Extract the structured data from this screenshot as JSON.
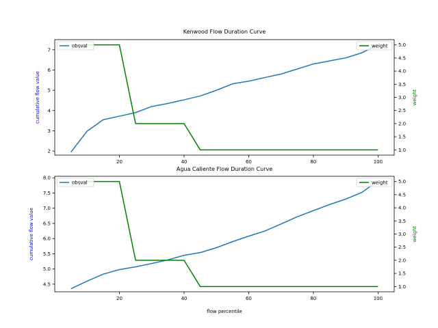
{
  "chart_data": [
    {
      "type": "line",
      "title": "Kenwood Flow Duration Curve",
      "xlabel": "",
      "ylabel": "cumulative flow value",
      "y2label": "weight",
      "xlim": [
        0,
        105
      ],
      "ylim": [
        1.8,
        7.5
      ],
      "y2lim": [
        0.8,
        5.2
      ],
      "xticks": [
        20,
        40,
        60,
        80,
        100
      ],
      "yticks": [
        2,
        3,
        4,
        5,
        6,
        7
      ],
      "y2ticks": [
        1.0,
        1.5,
        2.0,
        2.5,
        3.0,
        3.5,
        4.0,
        4.5,
        5.0
      ],
      "grid": false,
      "series": [
        {
          "name": "obsval",
          "axis": "left",
          "color": "#1f77b4",
          "x": [
            5,
            10,
            15,
            20,
            25,
            30,
            35,
            40,
            45,
            50,
            55,
            60,
            65,
            70,
            75,
            80,
            85,
            90,
            95,
            100
          ],
          "values": [
            1.95,
            2.98,
            3.55,
            3.72,
            3.9,
            4.2,
            4.35,
            4.53,
            4.72,
            5.0,
            5.32,
            5.45,
            5.63,
            5.8,
            6.05,
            6.3,
            6.45,
            6.6,
            6.85,
            7.25
          ],
          "legend_position": "top-left"
        },
        {
          "name": "weight",
          "axis": "right",
          "color": "#008000",
          "x": [
            5,
            10,
            15,
            20,
            25,
            30,
            35,
            40,
            45,
            50,
            55,
            60,
            65,
            70,
            75,
            80,
            85,
            90,
            95,
            100
          ],
          "values": [
            5,
            5,
            5,
            5,
            2,
            2,
            2,
            2,
            1,
            1,
            1,
            1,
            1,
            1,
            1,
            1,
            1,
            1,
            1,
            1
          ],
          "legend_position": "top-right"
        }
      ]
    },
    {
      "type": "line",
      "title": "Agua Caliente Flow Duration Curve",
      "xlabel": "flow percentile",
      "ylabel": "cumulative flow value",
      "y2label": "weight",
      "xlim": [
        0,
        105
      ],
      "ylim": [
        4.25,
        8.05
      ],
      "y2lim": [
        0.8,
        5.2
      ],
      "xticks": [
        20,
        40,
        60,
        80,
        100
      ],
      "yticks": [
        4.5,
        5.0,
        5.5,
        6.0,
        6.5,
        7.0,
        7.5,
        8.0
      ],
      "y2ticks": [
        1.0,
        1.5,
        2.0,
        2.5,
        3.0,
        3.5,
        4.0,
        4.5,
        5.0
      ],
      "grid": false,
      "series": [
        {
          "name": "obsval",
          "axis": "left",
          "color": "#1f77b4",
          "x": [
            5,
            10,
            15,
            20,
            25,
            30,
            35,
            40,
            45,
            50,
            55,
            60,
            65,
            70,
            75,
            80,
            85,
            90,
            95,
            100
          ],
          "values": [
            4.35,
            4.6,
            4.83,
            4.98,
            5.07,
            5.18,
            5.3,
            5.45,
            5.54,
            5.7,
            5.9,
            6.08,
            6.25,
            6.48,
            6.72,
            6.92,
            7.12,
            7.3,
            7.52,
            7.9
          ],
          "legend_position": "top-left"
        },
        {
          "name": "weight",
          "axis": "right",
          "color": "#008000",
          "x": [
            5,
            10,
            15,
            20,
            25,
            30,
            35,
            40,
            45,
            50,
            55,
            60,
            65,
            70,
            75,
            80,
            85,
            90,
            95,
            100
          ],
          "values": [
            5,
            5,
            5,
            5,
            2,
            2,
            2,
            2,
            1,
            1,
            1,
            1,
            1,
            1,
            1,
            1,
            1,
            1,
            1,
            1
          ],
          "legend_position": "top-right"
        }
      ]
    }
  ]
}
